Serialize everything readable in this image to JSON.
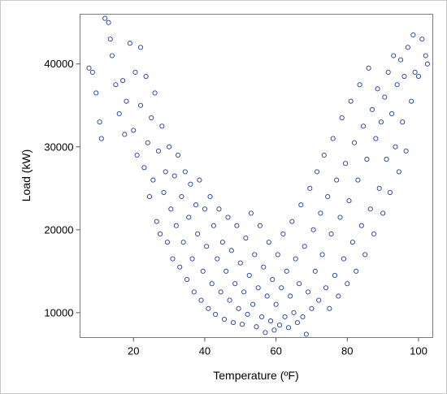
{
  "chart_data": {
    "type": "scatter",
    "title": "",
    "xlabel": "Temperature (ºF)",
    "ylabel": "Load (kW)",
    "xlim": [
      5,
      104
    ],
    "ylim": [
      7000,
      46000
    ],
    "x_ticks": [
      20,
      40,
      60,
      80,
      100
    ],
    "y_ticks": [
      10000,
      20000,
      30000,
      40000
    ],
    "x_tick_labels": [
      "20",
      "40",
      "60",
      "80",
      "100"
    ],
    "y_tick_labels": [
      "10000",
      "20000",
      "30000",
      "40000"
    ],
    "grid": false,
    "legend": "none",
    "marker": "circle-open",
    "series": [
      {
        "color": "#1f3c9f",
        "points": [
          [
            7.5,
            39500
          ],
          [
            8.5,
            39000
          ],
          [
            9.5,
            36500
          ],
          [
            10.5,
            33000
          ],
          [
            11,
            31000
          ],
          [
            12,
            45500
          ],
          [
            13,
            45000
          ],
          [
            13.5,
            43000
          ],
          [
            14,
            41000
          ],
          [
            15,
            37500
          ],
          [
            16,
            34000
          ],
          [
            17,
            38000
          ],
          [
            17.5,
            31500
          ],
          [
            18,
            35500
          ],
          [
            19,
            42500
          ],
          [
            20,
            32000
          ],
          [
            20.5,
            39000
          ],
          [
            21,
            29000
          ],
          [
            22,
            42000
          ],
          [
            22,
            35000
          ],
          [
            23,
            27500
          ],
          [
            23.5,
            38500
          ],
          [
            24,
            30500
          ],
          [
            24.5,
            24000
          ],
          [
            25,
            33500
          ],
          [
            25.5,
            26000
          ],
          [
            26,
            36500
          ],
          [
            26.5,
            21000
          ],
          [
            27,
            29500
          ],
          [
            27.5,
            19500
          ],
          [
            28,
            32500
          ],
          [
            28.5,
            24500
          ],
          [
            29,
            27000
          ],
          [
            29.5,
            18500
          ],
          [
            30,
            30000
          ],
          [
            30.5,
            22500
          ],
          [
            31,
            16500
          ],
          [
            31.5,
            26500
          ],
          [
            32,
            20500
          ],
          [
            32.5,
            29000
          ],
          [
            33,
            15500
          ],
          [
            33.5,
            24000
          ],
          [
            34,
            18500
          ],
          [
            34.5,
            27000
          ],
          [
            35,
            14000
          ],
          [
            35.5,
            21500
          ],
          [
            36,
            25500
          ],
          [
            36.5,
            16500
          ],
          [
            37,
            12500
          ],
          [
            37.5,
            23000
          ],
          [
            38,
            19500
          ],
          [
            38.5,
            26000
          ],
          [
            39,
            11500
          ],
          [
            39.5,
            15000
          ],
          [
            40,
            22500
          ],
          [
            40.5,
            18000
          ],
          [
            41,
            10500
          ],
          [
            41.5,
            24000
          ],
          [
            42,
            13500
          ],
          [
            42.5,
            20500
          ],
          [
            43,
            9800
          ],
          [
            43.5,
            16500
          ],
          [
            44,
            22500
          ],
          [
            44.5,
            12500
          ],
          [
            45,
            18500
          ],
          [
            45.5,
            9200
          ],
          [
            46,
            15000
          ],
          [
            46.5,
            21500
          ],
          [
            47,
            11500
          ],
          [
            47.5,
            17500
          ],
          [
            48,
            8800
          ],
          [
            48.5,
            13500
          ],
          [
            49,
            20500
          ],
          [
            49.5,
            10500
          ],
          [
            50,
            16000
          ],
          [
            50.5,
            8600
          ],
          [
            51,
            12500
          ],
          [
            51.5,
            19000
          ],
          [
            52,
            9800
          ],
          [
            52.5,
            14500
          ],
          [
            53,
            22000
          ],
          [
            53.5,
            11000
          ],
          [
            54,
            17000
          ],
          [
            54.5,
            8300
          ],
          [
            55,
            13000
          ],
          [
            55.5,
            20500
          ],
          [
            56,
            9500
          ],
          [
            56.5,
            15500
          ],
          [
            57,
            7600
          ],
          [
            57.5,
            12000
          ],
          [
            58,
            18500
          ],
          [
            58.5,
            9000
          ],
          [
            59,
            14000
          ],
          [
            59.5,
            7900
          ],
          [
            60,
            11000
          ],
          [
            60.5,
            17000
          ],
          [
            61,
            8500
          ],
          [
            61.5,
            13000
          ],
          [
            62,
            19500
          ],
          [
            62.5,
            9500
          ],
          [
            63,
            15000
          ],
          [
            63.5,
            8200
          ],
          [
            64,
            12000
          ],
          [
            64.5,
            21000
          ],
          [
            65,
            10000
          ],
          [
            65.5,
            16500
          ],
          [
            66,
            8800
          ],
          [
            66.5,
            13500
          ],
          [
            67,
            23000
          ],
          [
            67.5,
            9500
          ],
          [
            68,
            18000
          ],
          [
            68.5,
            7400
          ],
          [
            69,
            12500
          ],
          [
            69.5,
            25000
          ],
          [
            70,
            10500
          ],
          [
            70.5,
            20000
          ],
          [
            71,
            15000
          ],
          [
            71.5,
            27000
          ],
          [
            72,
            11500
          ],
          [
            72.5,
            22000
          ],
          [
            73,
            17000
          ],
          [
            73.5,
            29000
          ],
          [
            74,
            13000
          ],
          [
            74.5,
            24000
          ],
          [
            75,
            10500
          ],
          [
            75.5,
            19500
          ],
          [
            76,
            31000
          ],
          [
            76.5,
            14500
          ],
          [
            77,
            26000
          ],
          [
            77.5,
            12000
          ],
          [
            78,
            21500
          ],
          [
            78.5,
            33500
          ],
          [
            79,
            16500
          ],
          [
            79.5,
            28000
          ],
          [
            80,
            13500
          ],
          [
            80.5,
            23500
          ],
          [
            81,
            35500
          ],
          [
            81.5,
            18500
          ],
          [
            82,
            30500
          ],
          [
            82.5,
            15000
          ],
          [
            83,
            26000
          ],
          [
            83.5,
            37500
          ],
          [
            84,
            20500
          ],
          [
            84.5,
            32500
          ],
          [
            85,
            17000
          ],
          [
            85.5,
            28500
          ],
          [
            86,
            39500
          ],
          [
            86.5,
            22500
          ],
          [
            87,
            34500
          ],
          [
            87.5,
            19500
          ],
          [
            88,
            31000
          ],
          [
            88.5,
            37000
          ],
          [
            89,
            25000
          ],
          [
            89.5,
            33000
          ],
          [
            90,
            22000
          ],
          [
            90.5,
            36000
          ],
          [
            91,
            28500
          ],
          [
            91.5,
            39000
          ],
          [
            92,
            24500
          ],
          [
            92.5,
            34000
          ],
          [
            93,
            41000
          ],
          [
            93.5,
            30000
          ],
          [
            94,
            37500
          ],
          [
            94.5,
            27000
          ],
          [
            95,
            40500
          ],
          [
            95.5,
            33000
          ],
          [
            96,
            38500
          ],
          [
            96.5,
            29500
          ],
          [
            97,
            42000
          ],
          [
            98,
            35500
          ],
          [
            98.5,
            43500
          ],
          [
            99,
            39000
          ],
          [
            100,
            38500
          ],
          [
            101,
            43000
          ],
          [
            102,
            41000
          ],
          [
            102.5,
            40000
          ]
        ]
      }
    ]
  }
}
